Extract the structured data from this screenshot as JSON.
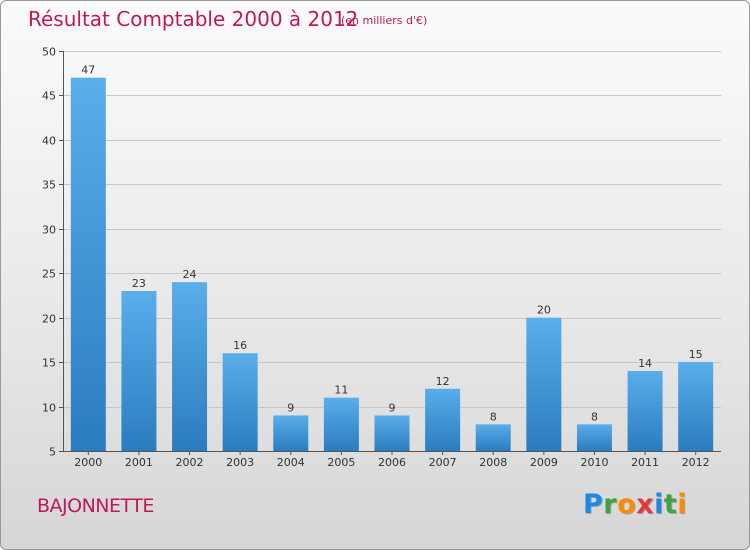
{
  "chart_data": {
    "type": "bar",
    "title": "Résultat Comptable 2000 à 2012",
    "subtitle": "(en milliers d'€)",
    "categories": [
      "2000",
      "2001",
      "2002",
      "2003",
      "2004",
      "2005",
      "2006",
      "2007",
      "2008",
      "2009",
      "2010",
      "2011",
      "2012"
    ],
    "values": [
      47,
      23,
      24,
      16,
      9,
      11,
      9,
      12,
      8,
      20,
      8,
      14,
      15
    ],
    "ylim": [
      5,
      50
    ],
    "yticks": [
      5,
      10,
      15,
      20,
      25,
      30,
      35,
      40,
      45,
      50
    ],
    "xlabel": "",
    "ylabel": "",
    "grid": true
  },
  "commune": "BAJONNETTE",
  "logo": {
    "text": "Proxiti",
    "letters": [
      {
        "char": "P",
        "color": "#1e88e5"
      },
      {
        "char": "r",
        "color": "#43a047"
      },
      {
        "char": "o",
        "color": "#fb8c00"
      },
      {
        "char": "x",
        "color": "#e53935"
      },
      {
        "char": "i",
        "color": "#1e88e5"
      },
      {
        "char": "t",
        "color": "#43a047"
      },
      {
        "char": "i",
        "color": "#fb8c00"
      }
    ]
  },
  "colors": {
    "accent": "#c2185b",
    "bar_top": "#5aaeea",
    "bar_bottom": "#2a7cc0"
  }
}
